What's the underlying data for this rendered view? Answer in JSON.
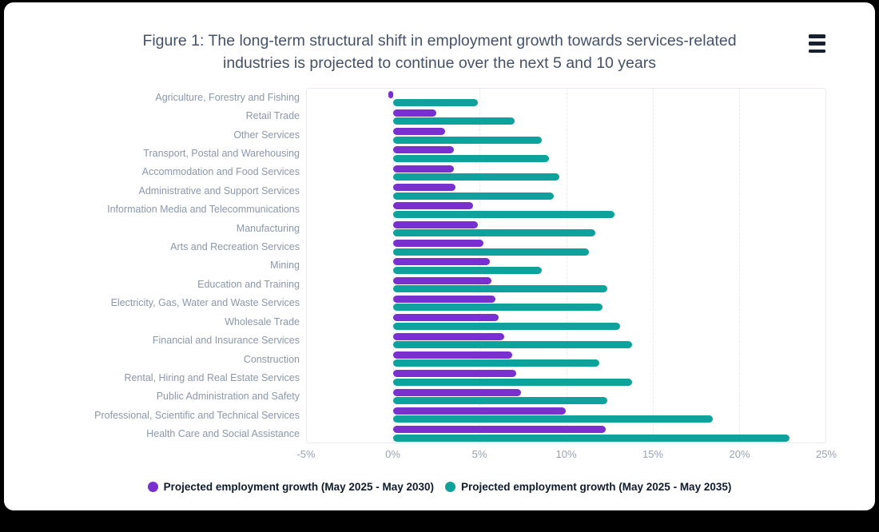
{
  "header": {
    "menu_icon": "hamburger-menu-icon"
  },
  "colors": {
    "series_2030": "#7930CE",
    "series_2035": "#0FA29C",
    "title_text": "#44516B",
    "category_text": "#8B97AB",
    "axis_text": "#98A2B5",
    "legend_text": "#0F1C2E",
    "gridline": "#E6EBF2",
    "card_background": "#FFFFFF",
    "frame_background": "#000000"
  },
  "chart_data": {
    "type": "bar",
    "orientation": "horizontal",
    "title": "Figure 1: The long-term structural shift in employment growth towards services-related industries is projected to continue over the next 5 and 10 years",
    "categories": [
      "Agriculture, Forestry and Fishing",
      "Retail Trade",
      "Other Services",
      "Transport, Postal and Warehousing",
      "Accommodation and Food Services",
      "Administrative and Support Services",
      "Information Media and Telecommunications",
      "Manufacturing",
      "Arts and Recreation Services",
      "Mining",
      "Education and Training",
      "Electricity, Gas, Water and Waste Services",
      "Wholesale Trade",
      "Financial and Insurance Services",
      "Construction",
      "Rental, Hiring and Real Estate Services",
      "Public Administration and Safety",
      "Professional, Scientific and Technical Services",
      "Health Care and Social Assistance"
    ],
    "series": [
      {
        "name": "Projected employment growth (May 2025 - May 2030)",
        "color": "#7930CE",
        "values": [
          -0.3,
          2.5,
          3.0,
          3.5,
          3.5,
          3.6,
          4.6,
          4.9,
          5.2,
          5.6,
          5.7,
          5.9,
          6.1,
          6.4,
          6.9,
          7.1,
          7.4,
          10.0,
          12.3
        ]
      },
      {
        "name": "Projected employment growth (May 2025 - May 2035)",
        "color": "#0FA29C",
        "values": [
          4.9,
          7.0,
          8.6,
          9.0,
          9.6,
          9.3,
          12.8,
          11.7,
          11.3,
          8.6,
          12.4,
          12.1,
          13.1,
          13.8,
          11.9,
          13.8,
          12.4,
          18.5,
          22.9
        ]
      }
    ],
    "x_tick_labels": [
      "-5%",
      "0%",
      "5%",
      "10%",
      "15%",
      "20%",
      "25%"
    ],
    "x_tick_values": [
      -5,
      0,
      5,
      10,
      15,
      20,
      25
    ],
    "xlim": [
      -5,
      25
    ],
    "value_unit": "%",
    "grid": "vertical-dashed",
    "legend_position": "bottom"
  }
}
